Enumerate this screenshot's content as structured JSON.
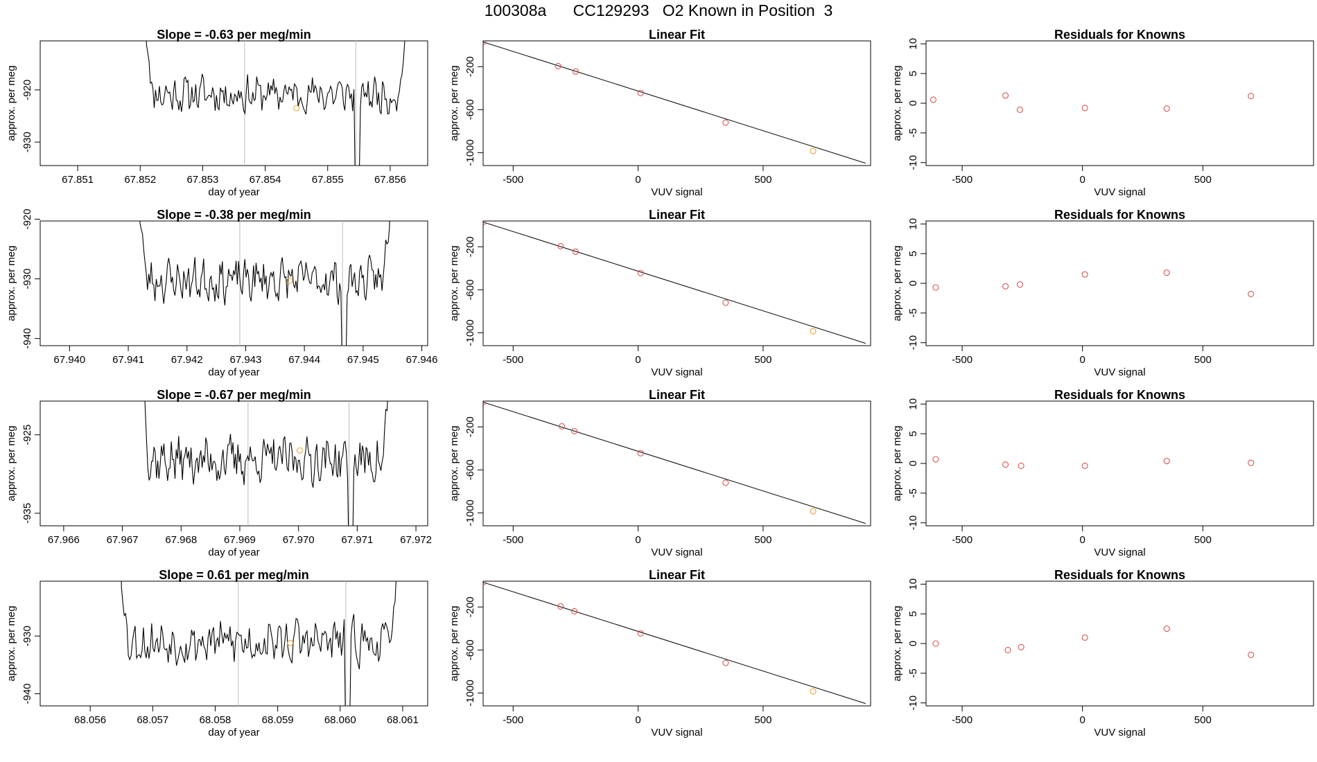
{
  "page": {
    "title": "100308a      CC129293   O2 Known in Position  3"
  },
  "colors": {
    "trace": "#000000",
    "frame": "#000000",
    "vline": "#bdbdbd",
    "point_red": "#d9534f",
    "point_orange": "#f0a030"
  },
  "chart_data": [
    {
      "id": "r1-time",
      "type": "line",
      "title": "Slope =  -0.63  per meg/min",
      "xlabel": "day of year",
      "ylabel": "approx. per meg",
      "xlim": [
        67.8504,
        67.8566
      ],
      "ylim": [
        -934.5,
        -910.6
      ],
      "xticks": [
        "67.851",
        "67.852",
        "67.853",
        "67.854",
        "67.855",
        "67.856"
      ],
      "yticks": [
        "-920",
        "-930"
      ],
      "vlines": [
        67.85367,
        67.85545
      ],
      "start": 67.8521,
      "end": 67.85625,
      "base": -920.8,
      "amp": 2.6,
      "seed": 11,
      "marker": [
        67.8545,
        -923.5
      ]
    },
    {
      "id": "r1-fit",
      "type": "scatter",
      "title": "Linear Fit",
      "xlabel": "VUV signal",
      "ylabel": "approx. per meg",
      "xlim": [
        -620,
        930
      ],
      "ylim": [
        -1120,
        40
      ],
      "xticks": [
        "-500",
        "0",
        "500"
      ],
      "yticks": [
        "-200",
        "-600",
        "-1000"
      ],
      "line": [
        [
          -620,
          30
        ],
        [
          910,
          -1098
        ]
      ],
      "points": [
        [
          -620,
          30
        ],
        [
          -320,
          -195
        ],
        [
          -250,
          -245
        ],
        [
          10,
          -445
        ],
        [
          350,
          -720
        ],
        [
          700,
          -985
        ]
      ],
      "highlight_index": 5
    },
    {
      "id": "r1-resid",
      "type": "scatter",
      "title": "Residuals for Knowns",
      "xlabel": "VUV signal",
      "ylabel": "approx. per meg",
      "xlim": [
        -650,
        960
      ],
      "ylim": [
        -10.5,
        10.5
      ],
      "xticks": [
        "-500",
        "0",
        "500"
      ],
      "yticks": [
        "-10",
        "-5",
        "0",
        "5",
        "10"
      ],
      "points": [
        [
          -620,
          0.6
        ],
        [
          -320,
          1.3
        ],
        [
          -260,
          -1.1
        ],
        [
          10,
          -0.8
        ],
        [
          350,
          -0.9
        ],
        [
          700,
          1.2
        ]
      ]
    },
    {
      "id": "r2-time",
      "type": "line",
      "title": "Slope =  -0.38  per meg/min",
      "xlabel": "day of year",
      "ylabel": "approx. per meg",
      "xlim": [
        67.9395,
        67.9461
      ],
      "ylim": [
        -941.2,
        -920.3
      ],
      "xticks": [
        "67.940",
        "67.941",
        "67.942",
        "67.943",
        "67.944",
        "67.945",
        "67.946"
      ],
      "yticks": [
        "-920",
        "-930",
        "-940"
      ],
      "vlines": [
        67.9429,
        67.94465
      ],
      "start": 67.9412,
      "end": 67.94545,
      "base": -930.2,
      "amp": 2.6,
      "seed": 23,
      "marker": [
        67.94375,
        -930.3
      ]
    },
    {
      "id": "r2-fit",
      "type": "scatter",
      "title": "Linear Fit",
      "xlabel": "VUV signal",
      "ylabel": "approx. per meg",
      "xlim": [
        -620,
        930
      ],
      "ylim": [
        -1120,
        40
      ],
      "xticks": [
        "-500",
        "0",
        "500"
      ],
      "yticks": [
        "-200",
        "-600",
        "-1000"
      ],
      "line": [
        [
          -620,
          30
        ],
        [
          910,
          -1098
        ]
      ],
      "points": [
        [
          -620,
          30
        ],
        [
          -310,
          -195
        ],
        [
          -250,
          -245
        ],
        [
          10,
          -445
        ],
        [
          350,
          -720
        ],
        [
          700,
          -985
        ]
      ],
      "highlight_index": 5
    },
    {
      "id": "r2-resid",
      "type": "scatter",
      "title": "Residuals for Knowns",
      "xlabel": "VUV signal",
      "ylabel": "approx. per meg",
      "xlim": [
        -650,
        960
      ],
      "ylim": [
        -10.5,
        10.5
      ],
      "xticks": [
        "-500",
        "0",
        "500"
      ],
      "yticks": [
        "-10",
        "-5",
        "0",
        "5",
        "10"
      ],
      "points": [
        [
          -610,
          -0.7
        ],
        [
          -320,
          -0.5
        ],
        [
          -260,
          -0.2
        ],
        [
          10,
          1.5
        ],
        [
          350,
          1.8
        ],
        [
          700,
          -1.8
        ]
      ]
    },
    {
      "id": "r3-time",
      "type": "line",
      "title": "Slope =  -0.67  per meg/min",
      "xlabel": "day of year",
      "ylabel": "approx. per meg",
      "xlim": [
        67.9656,
        67.9722
      ],
      "ylim": [
        -936.6,
        -920.7
      ],
      "xticks": [
        "67.966",
        "67.967",
        "67.968",
        "67.969",
        "67.970",
        "67.971",
        "67.972"
      ],
      "yticks": [
        "-925",
        "-935"
      ],
      "vlines": [
        67.96914,
        67.97086
      ],
      "start": 67.96735,
      "end": 67.97155,
      "base": -928.2,
      "amp": 2.2,
      "seed": 37,
      "marker": [
        67.97002,
        -927.0
      ]
    },
    {
      "id": "r3-fit",
      "type": "scatter",
      "title": "Linear Fit",
      "xlabel": "VUV signal",
      "ylabel": "approx. per meg",
      "xlim": [
        -620,
        930
      ],
      "ylim": [
        -1120,
        40
      ],
      "xticks": [
        "-500",
        "0",
        "500"
      ],
      "yticks": [
        "-200",
        "-600",
        "-1000"
      ],
      "line": [
        [
          -620,
          30
        ],
        [
          910,
          -1098
        ]
      ],
      "points": [
        [
          -620,
          30
        ],
        [
          -305,
          -195
        ],
        [
          -255,
          -240
        ],
        [
          10,
          -445
        ],
        [
          350,
          -720
        ],
        [
          700,
          -985
        ]
      ],
      "highlight_index": 5
    },
    {
      "id": "r3-resid",
      "type": "scatter",
      "title": "Residuals for Knowns",
      "xlabel": "VUV signal",
      "ylabel": "approx. per meg",
      "xlim": [
        -650,
        960
      ],
      "ylim": [
        -10.5,
        10.5
      ],
      "xticks": [
        "-500",
        "0",
        "500"
      ],
      "yticks": [
        "-10",
        "-5",
        "0",
        "5",
        "10"
      ],
      "points": [
        [
          -610,
          0.7
        ],
        [
          -320,
          -0.2
        ],
        [
          -255,
          -0.4
        ],
        [
          10,
          -0.4
        ],
        [
          350,
          0.4
        ],
        [
          700,
          0.1
        ]
      ]
    },
    {
      "id": "r4-time",
      "type": "line",
      "title": "Slope =  0.61  per meg/min",
      "xlabel": "day of year",
      "ylabel": "approx. per meg",
      "xlim": [
        68.0552,
        68.0614
      ],
      "ylim": [
        -942.1,
        -920.5
      ],
      "xticks": [
        "68.056",
        "68.057",
        "68.058",
        "68.059",
        "68.060",
        "68.061"
      ],
      "yticks": [
        "-930",
        "-940"
      ],
      "vlines": [
        68.05837,
        68.06009
      ],
      "start": 68.0565,
      "end": 68.0609,
      "base": -931.0,
      "amp": 2.8,
      "seed": 53,
      "marker": [
        68.0592,
        -931.2
      ]
    },
    {
      "id": "r4-fit",
      "type": "scatter",
      "title": "Linear Fit",
      "xlabel": "VUV signal",
      "ylabel": "approx. per meg",
      "xlim": [
        -620,
        930
      ],
      "ylim": [
        -1120,
        40
      ],
      "xticks": [
        "-500",
        "0",
        "500"
      ],
      "yticks": [
        "-200",
        "-600",
        "-1000"
      ],
      "line": [
        [
          -620,
          30
        ],
        [
          910,
          -1098
        ]
      ],
      "points": [
        [
          -620,
          30
        ],
        [
          -310,
          -195
        ],
        [
          -255,
          -240
        ],
        [
          10,
          -445
        ],
        [
          350,
          -720
        ],
        [
          700,
          -985
        ]
      ],
      "highlight_index": 5
    },
    {
      "id": "r4-resid",
      "type": "scatter",
      "title": "Residuals for Knowns",
      "xlabel": "VUV signal",
      "ylabel": "approx. per meg",
      "xlim": [
        -650,
        960
      ],
      "ylim": [
        -10.5,
        10.5
      ],
      "xticks": [
        "-500",
        "0",
        "500"
      ],
      "yticks": [
        "-10",
        "-5",
        "0",
        "5",
        "10"
      ],
      "points": [
        [
          -610,
          0.0
        ],
        [
          -310,
          -1.1
        ],
        [
          -255,
          -0.6
        ],
        [
          10,
          1.0
        ],
        [
          350,
          2.5
        ],
        [
          700,
          -1.9
        ]
      ]
    }
  ]
}
